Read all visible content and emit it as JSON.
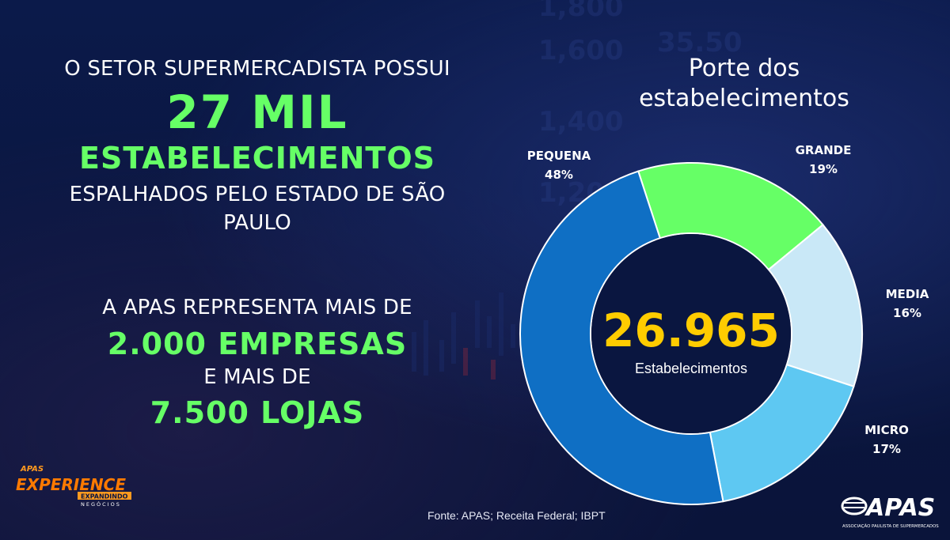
{
  "left": {
    "intro": "O SETOR SUPERMERCADISTA POSSUI",
    "big_number": "27 MIL",
    "big_word": "ESTABELECIMENTOS",
    "spread": "ESPALHADOS PELO ESTADO DE SÃO PAULO",
    "apas_rep": "A APAS REPRESENTA MAIS DE",
    "empresas": "2.000 EMPRESAS",
    "e_mais": "E MAIS DE",
    "lojas": "7.500 LOJAS"
  },
  "chart_data": {
    "type": "pie",
    "title": "Porte dos estabelecimentos",
    "center_value": "26.965",
    "center_label": "Estabelecimentos",
    "categories": [
      "GRANDE",
      "MEDIA",
      "MICRO",
      "PEQUENA"
    ],
    "values": [
      19,
      16,
      17,
      48
    ],
    "value_labels": [
      "19%",
      "16%",
      "17%",
      "48%"
    ],
    "colors": [
      "#66ff66",
      "#c9e8f7",
      "#5ec8f2",
      "#0f6fc4"
    ],
    "donut": true
  },
  "source": "Fonte: APAS; Receita Federal; IBPT",
  "logos": {
    "experience": {
      "top": "APAS",
      "word": "EXPERIENCE",
      "tag": "EXPANDINDO",
      "sub": "NEGÓCIOS"
    },
    "apas": {
      "word": "APAS",
      "sub": "ASSOCIAÇÃO PAULISTA DE SUPERMERCADOS"
    }
  }
}
